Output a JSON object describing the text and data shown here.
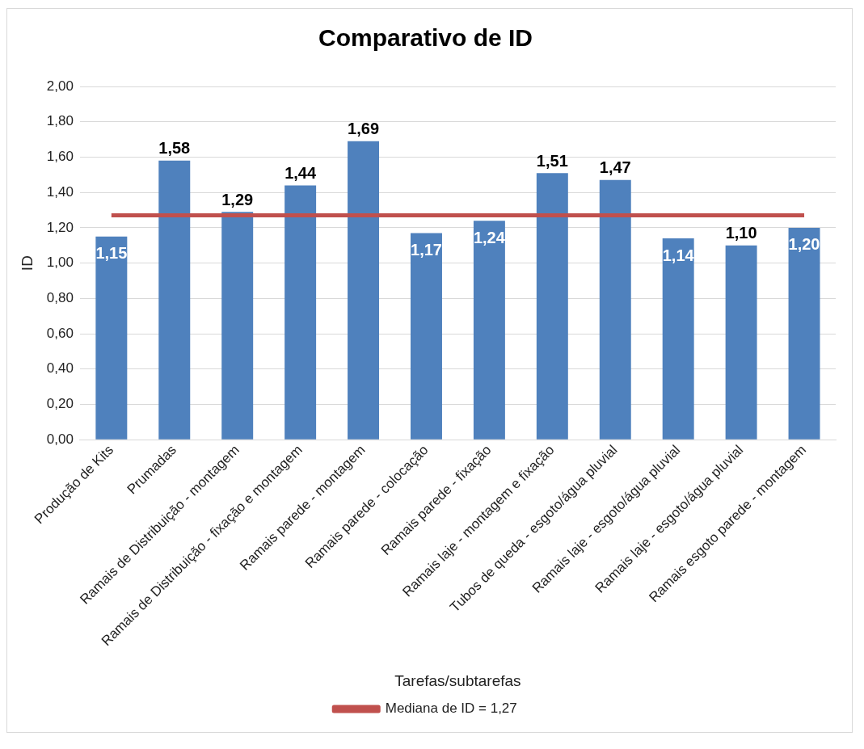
{
  "chart_data": {
    "type": "bar",
    "title": "Comparativo de ID",
    "xlabel": "Tarefas/subtarefas",
    "ylabel": "ID",
    "categories": [
      "Produção de Kits",
      "Prumadas",
      "Ramais de Distribuição - montagem",
      "Ramais de Distribuição - fixação e montagem",
      "Ramais parede - montagem",
      "Ramais parede - colocação",
      "Ramais parede - fixação",
      "Ramais laje - montagem e fixação",
      "Tubos de queda - esgoto/água pluvial",
      "Ramais laje - esgoto/água pluvial",
      "Ramais laje - esgoto/água pluvial",
      "Ramais esgoto parede - montagem"
    ],
    "series": [
      {
        "color": "#4f81bd",
        "values": [
          1.15,
          1.58,
          1.29,
          1.44,
          1.69,
          1.17,
          1.24,
          1.51,
          1.47,
          1.14,
          1.1,
          1.2
        ],
        "value_labels": [
          "1,15",
          "1,58",
          "1,29",
          "1,44",
          "1,69",
          "1,17",
          "1,24",
          "1,51",
          "1,47",
          "1,14",
          "1,10",
          "1,20"
        ]
      },
      {
        "type": "line",
        "name": "Mediana de ID = 1,27",
        "color": "#c0504d",
        "marker": "none",
        "values": [
          1.27,
          1.27,
          1.27,
          1.27,
          1.27,
          1.27,
          1.27,
          1.27,
          1.27,
          1.27,
          1.27,
          1.27
        ]
      }
    ],
    "ylim": [
      0,
      2
    ],
    "yticks": [
      {
        "value": 0,
        "label": "0,00"
      },
      {
        "value": 0.2,
        "label": "0,20"
      },
      {
        "value": 0.4,
        "label": "0,40"
      },
      {
        "value": 0.6,
        "label": "0,60"
      },
      {
        "value": 0.8,
        "label": "0,80"
      },
      {
        "value": 1,
        "label": "1,00"
      },
      {
        "value": 1.2,
        "label": "1,20"
      },
      {
        "value": 1.4,
        "label": "1,40"
      },
      {
        "value": 1.6,
        "label": "1,60"
      },
      {
        "value": 1.8,
        "label": "1,80"
      },
      {
        "value": 2,
        "label": "2,00"
      }
    ],
    "grid": "y",
    "legend": "bottom"
  }
}
